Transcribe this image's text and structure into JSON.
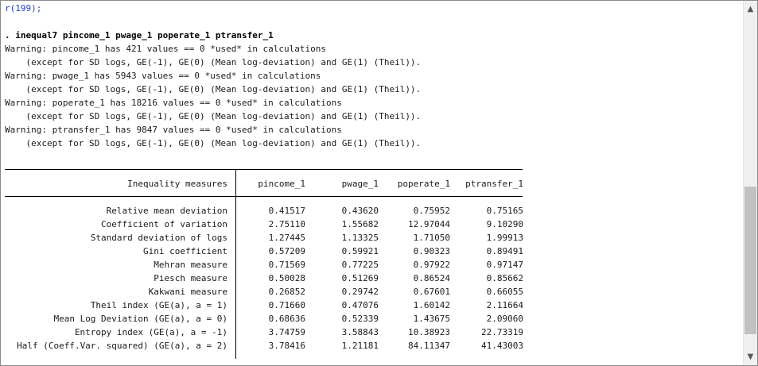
{
  "console": {
    "lines": [
      "r(199);",
      "",
      ". inequal7 pincome_1 pwage_1 poperate_1 ptransfer_1",
      "Warning: pincome_1 has 421 values == 0 *used* in calculations",
      "    (except for SD logs, GE(-1), GE(0) (Mean log-deviation) and GE(1) (Theil)).",
      "Warning: pwage_1 has 5943 values == 0 *used* in calculations",
      "    (except for SD logs, GE(-1), GE(0) (Mean log-deviation) and GE(1) (Theil)).",
      "Warning: poperate_1 has 18216 values == 0 *used* in calculations",
      "    (except for SD logs, GE(-1), GE(0) (Mean log-deviation) and GE(1) (Theil)).",
      "Warning: ptransfer_1 has 9847 values == 0 *used* in calculations",
      "    (except for SD logs, GE(-1), GE(0) (Mean log-deviation) and GE(1) (Theil))."
    ]
  },
  "table": {
    "header": [
      "Inequality measures",
      "pincome_1",
      "pwage_1",
      "poperate_1",
      "ptransfer_1"
    ],
    "rows": [
      [
        "Relative mean deviation",
        "0.41517",
        "0.43620",
        "0.75952",
        "0.75165"
      ],
      [
        "Coefficient of variation",
        "2.75110",
        "1.55682",
        "12.97044",
        "9.10290"
      ],
      [
        "Standard deviation of logs",
        "1.27445",
        "1.13325",
        "1.71050",
        "1.99913"
      ],
      [
        "Gini coefficient",
        "0.57209",
        "0.59921",
        "0.90323",
        "0.89491"
      ],
      [
        "Mehran measure",
        "0.71569",
        "0.77225",
        "0.97922",
        "0.97147"
      ],
      [
        "Piesch measure",
        "0.50028",
        "0.51269",
        "0.86524",
        "0.85662"
      ],
      [
        "Kakwani measure",
        "0.26852",
        "0.29742",
        "0.67601",
        "0.66055"
      ],
      [
        "Theil index (GE(a), a = 1)",
        "0.71660",
        "0.47076",
        "1.60142",
        "2.11664"
      ],
      [
        "Mean Log Deviation (GE(a), a = 0)",
        "0.68636",
        "0.52339",
        "1.43675",
        "2.09060"
      ],
      [
        "Entropy index (GE(a), a = -1)",
        "3.74759",
        "3.58843",
        "10.38923",
        "22.73319"
      ],
      [
        "Half (Coeff.Var. squared) (GE(a), a = 2)",
        "3.78416",
        "1.21181",
        "84.11347",
        "41.43003"
      ]
    ]
  },
  "colors": {
    "error_text": "#1f3fcf",
    "scroll_thumb": "#c1c1c1"
  },
  "scrollbar": {
    "up_icon": "chevron-up",
    "down_icon": "chevron-down",
    "position_fraction": 0.78
  }
}
